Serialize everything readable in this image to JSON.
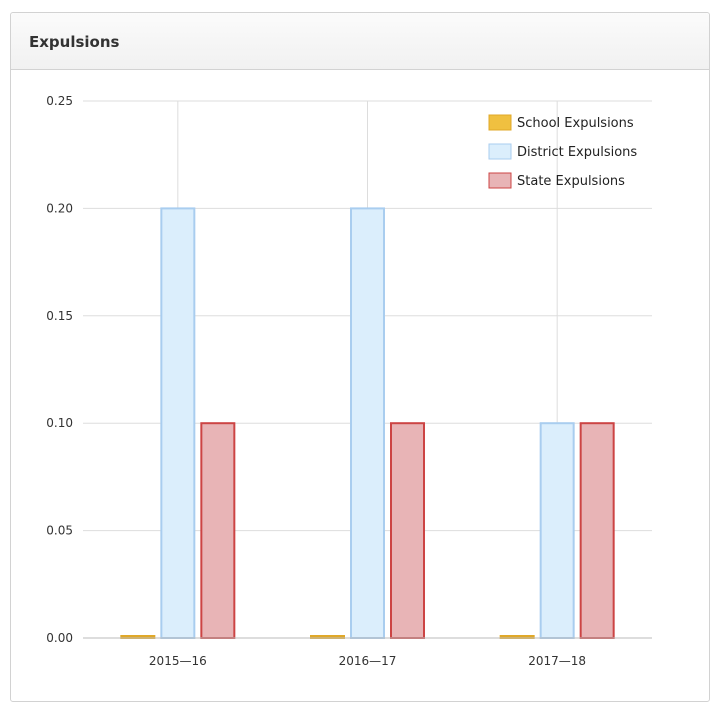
{
  "panel": {
    "title": "Expulsions"
  },
  "chart_data": {
    "type": "bar",
    "title": "",
    "xlabel": "",
    "ylabel": "",
    "categories": [
      "2015—16",
      "2016—17",
      "2017—18"
    ],
    "ylim": [
      0,
      0.25
    ],
    "yticks": [
      "0.00",
      "0.05",
      "0.10",
      "0.15",
      "0.20",
      "0.25"
    ],
    "grid": true,
    "legend_position": "top-right",
    "series": [
      {
        "name": "School Expulsions",
        "values": [
          0,
          0,
          0
        ],
        "color": "#f0c040",
        "stroke": "#e0a828"
      },
      {
        "name": "District Expulsions",
        "values": [
          0.2,
          0.2,
          0.1
        ],
        "color": "#dbeefc",
        "stroke": "#a9cdef"
      },
      {
        "name": "State Expulsions",
        "values": [
          0.1,
          0.1,
          0.1
        ],
        "color": "#e8b4b6",
        "stroke": "#cc4444"
      }
    ]
  }
}
